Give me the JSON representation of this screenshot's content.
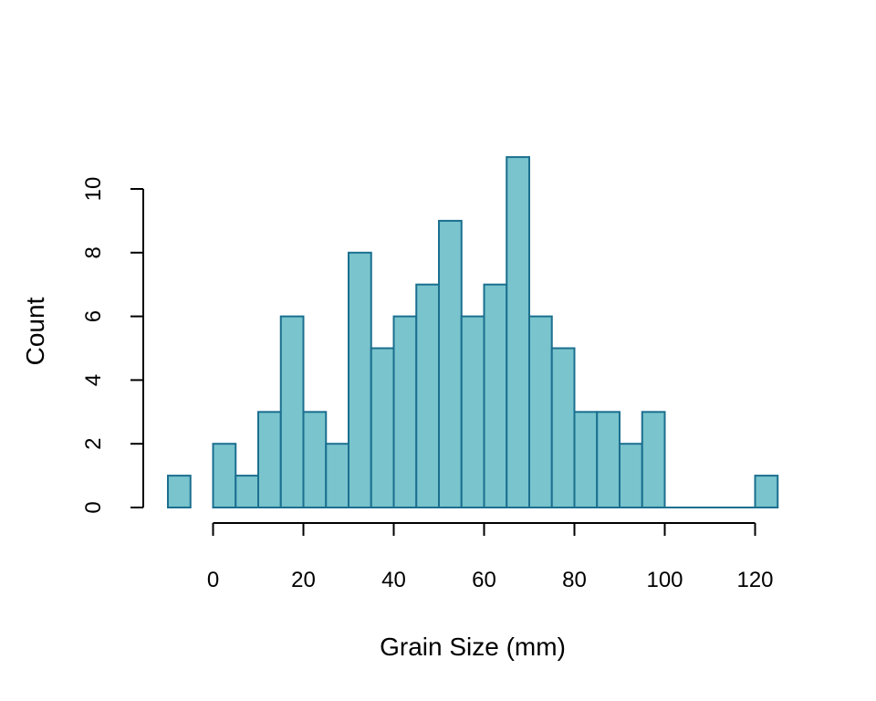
{
  "chart_data": {
    "type": "bar",
    "xlabel": "Grain Size (mm)",
    "ylabel": "Count",
    "xlim": [
      -10,
      125
    ],
    "ylim": [
      0,
      11
    ],
    "bin_width": 5,
    "bins_start": [
      -10,
      -5,
      0,
      5,
      10,
      15,
      20,
      25,
      30,
      35,
      40,
      45,
      50,
      55,
      60,
      65,
      70,
      75,
      80,
      85,
      90,
      95,
      100,
      105,
      110,
      115,
      120
    ],
    "values": [
      1,
      0,
      2,
      1,
      3,
      6,
      3,
      2,
      8,
      5,
      6,
      7,
      9,
      6,
      7,
      11,
      6,
      5,
      3,
      3,
      2,
      3,
      0,
      0,
      0,
      0,
      1
    ],
    "x_ticks": [
      0,
      20,
      40,
      60,
      80,
      100,
      120
    ],
    "y_ticks": [
      0,
      2,
      4,
      6,
      8,
      10
    ],
    "grid": false,
    "legend": "none",
    "colors": {
      "fill": "#79c4cd",
      "stroke": "#1b6f8f",
      "axis": "#000000"
    }
  }
}
